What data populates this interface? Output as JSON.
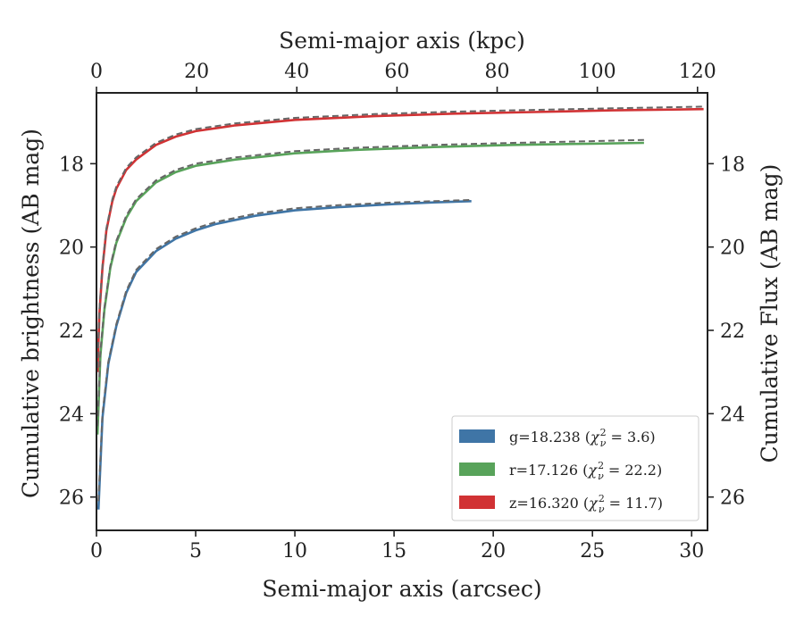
{
  "chart_data": {
    "type": "line",
    "xlabel": "Semi-major axis (arcsec)",
    "xlabel_top": "Semi-major axis (kpc)",
    "ylabel": "Cumulative brightness (AB mag)",
    "ylabel_right": "Cumulative Flux (AB mag)",
    "xlim": [
      0,
      30.8
    ],
    "ylim": [
      26.8,
      16.3
    ],
    "y_inverted": true,
    "grid": false,
    "legend_position": "lower-right",
    "x_ticks": [
      0,
      5,
      10,
      15,
      20,
      25,
      30
    ],
    "y_ticks": [
      18,
      20,
      22,
      24,
      26
    ],
    "top_ticks": [
      0,
      20,
      40,
      60,
      80,
      100,
      120
    ],
    "top_axis_max": 122,
    "model_line_color": "#666666",
    "series": [
      {
        "name": "g",
        "color": "#3f75a6",
        "legend": {
          "prefix": "g=18.238 (",
          "chi": "χ",
          "sub": "ν",
          "sup": "2",
          "suffix": " = 3.6)"
        },
        "x": [
          0.1,
          0.3,
          0.6,
          1.0,
          1.5,
          2.0,
          3.0,
          4.0,
          5.0,
          6.0,
          8.0,
          10.0,
          12.0,
          15.0,
          17.0,
          18.9
        ],
        "y": [
          26.3,
          24.1,
          22.8,
          21.9,
          21.1,
          20.6,
          20.1,
          19.8,
          19.6,
          19.45,
          19.25,
          19.12,
          19.05,
          18.97,
          18.93,
          18.9
        ],
        "model_x": [
          0.1,
          0.3,
          0.6,
          1.0,
          1.5,
          2.0,
          3.0,
          4.0,
          5.0,
          6.0,
          8.0,
          10.0,
          12.0,
          15.0,
          17.0,
          18.9
        ],
        "model_y": [
          26.1,
          24.0,
          22.75,
          21.85,
          21.05,
          20.55,
          20.05,
          19.75,
          19.55,
          19.4,
          19.2,
          19.07,
          19.0,
          18.93,
          18.9,
          18.87
        ]
      },
      {
        "name": "r",
        "color": "#58a35a",
        "legend": {
          "prefix": "r=17.126 (",
          "chi": "χ",
          "sub": "ν",
          "sup": "2",
          "suffix": " = 22.2)"
        },
        "x": [
          0.05,
          0.2,
          0.4,
          0.7,
          1.0,
          1.5,
          2.0,
          3.0,
          4.0,
          5.0,
          7.0,
          10.0,
          13.0,
          17.0,
          21.0,
          25.0,
          27.6
        ],
        "y": [
          24.5,
          22.6,
          21.5,
          20.5,
          19.9,
          19.3,
          18.9,
          18.45,
          18.2,
          18.05,
          17.9,
          17.75,
          17.67,
          17.6,
          17.55,
          17.52,
          17.5
        ],
        "model_x": [
          0.05,
          0.2,
          0.4,
          0.7,
          1.0,
          1.5,
          2.0,
          3.0,
          4.0,
          5.0,
          7.0,
          10.0,
          13.0,
          17.0,
          21.0,
          25.0,
          27.6
        ],
        "model_y": [
          24.3,
          22.5,
          21.45,
          20.45,
          19.85,
          19.25,
          18.85,
          18.4,
          18.15,
          18.0,
          17.85,
          17.7,
          17.62,
          17.55,
          17.5,
          17.46,
          17.43
        ]
      },
      {
        "name": "z",
        "color": "#d13234",
        "legend": {
          "prefix": "z=16.320 (",
          "chi": "χ",
          "sub": "ν",
          "sup": "2",
          "suffix": " = 11.7)"
        },
        "x": [
          0.05,
          0.15,
          0.3,
          0.5,
          0.8,
          1.0,
          1.5,
          2.0,
          3.0,
          4.0,
          5.0,
          7.0,
          10.0,
          14.0,
          18.0,
          22.0,
          26.0,
          30.6
        ],
        "y": [
          23.0,
          21.6,
          20.5,
          19.6,
          18.9,
          18.6,
          18.15,
          17.9,
          17.55,
          17.35,
          17.22,
          17.08,
          16.95,
          16.86,
          16.8,
          16.76,
          16.72,
          16.69
        ],
        "model_x": [
          0.05,
          0.15,
          0.3,
          0.5,
          0.8,
          1.0,
          1.5,
          2.0,
          3.0,
          4.0,
          5.0,
          7.0,
          10.0,
          14.0,
          18.0,
          22.0,
          26.0,
          30.6
        ],
        "model_y": [
          22.9,
          21.5,
          20.45,
          19.55,
          18.85,
          18.55,
          18.1,
          17.85,
          17.5,
          17.3,
          17.17,
          17.03,
          16.9,
          16.81,
          16.75,
          16.71,
          16.67,
          16.63
        ]
      }
    ]
  }
}
